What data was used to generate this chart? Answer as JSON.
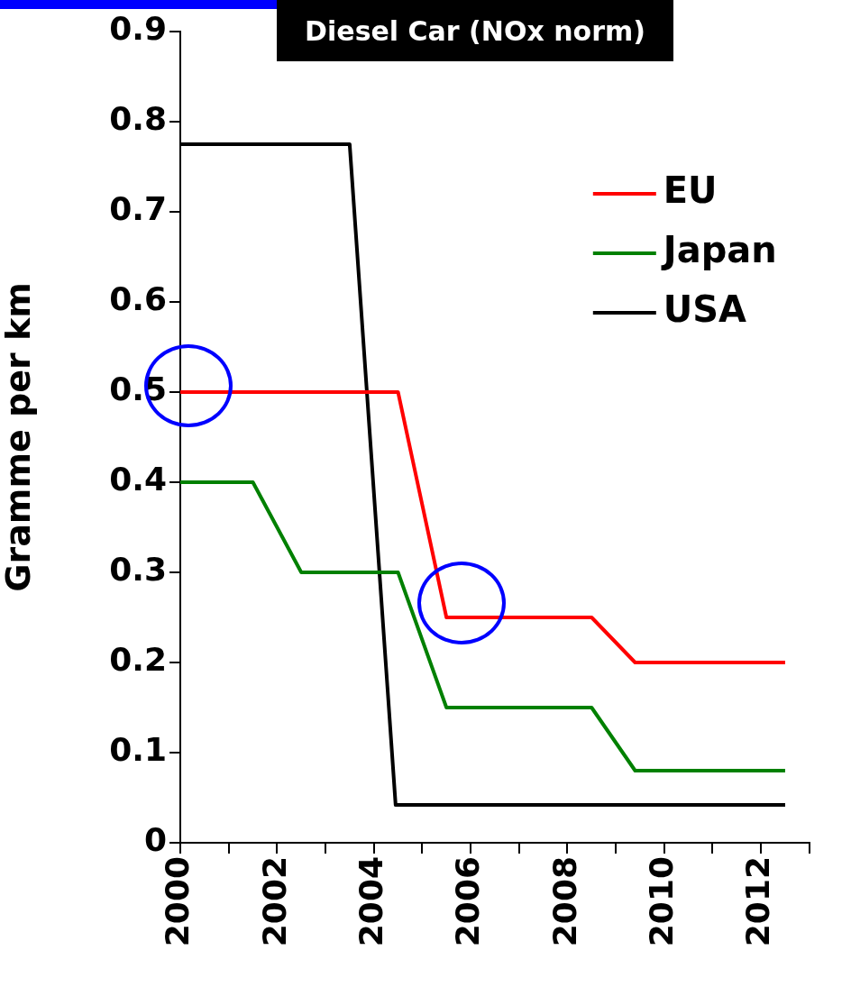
{
  "chart_data": {
    "type": "line",
    "title": "Diesel Car (NOx norm)",
    "ylabel": "Gramme per km",
    "xlim": [
      2000,
      2013
    ],
    "xticks": [
      2000,
      {
        "value": 2001,
        "label": null
      },
      2002,
      {
        "value": 2003,
        "label": null
      },
      2004,
      {
        "value": 2005,
        "label": null
      },
      2006,
      {
        "value": 2007,
        "label": null
      },
      2008,
      {
        "value": 2009,
        "label": null
      },
      2010,
      {
        "value": 2011,
        "label": null
      },
      2012,
      {
        "value": 2013,
        "label": null
      }
    ],
    "ylim": [
      0,
      0.9
    ],
    "yticks": [
      0,
      0.1,
      0.2,
      0.3,
      0.4,
      0.5,
      0.6,
      0.7,
      0.8,
      0.9
    ],
    "series": [
      {
        "name": "EU",
        "color": "#ff0000",
        "x": [
          2000,
          2004.5,
          2005.5,
          2008.5,
          2009.4,
          2012.5
        ],
        "values": [
          0.5,
          0.5,
          0.25,
          0.25,
          0.2,
          0.2
        ]
      },
      {
        "name": "Japan",
        "color": "#008000",
        "x": [
          2000,
          2001.5,
          2002.5,
          2004.5,
          2005.5,
          2008.5,
          2009.4,
          2012.5
        ],
        "values": [
          0.4,
          0.4,
          0.3,
          0.3,
          0.15,
          0.15,
          0.08,
          0.08
        ]
      },
      {
        "name": "USA",
        "color": "#000000",
        "x": [
          2000,
          2003.5,
          2004.45,
          2012.5
        ],
        "values": [
          0.775,
          0.775,
          0.042,
          0.042
        ]
      }
    ],
    "legend": "top right",
    "grid": false,
    "marker": "none",
    "line_style": "solid"
  }
}
